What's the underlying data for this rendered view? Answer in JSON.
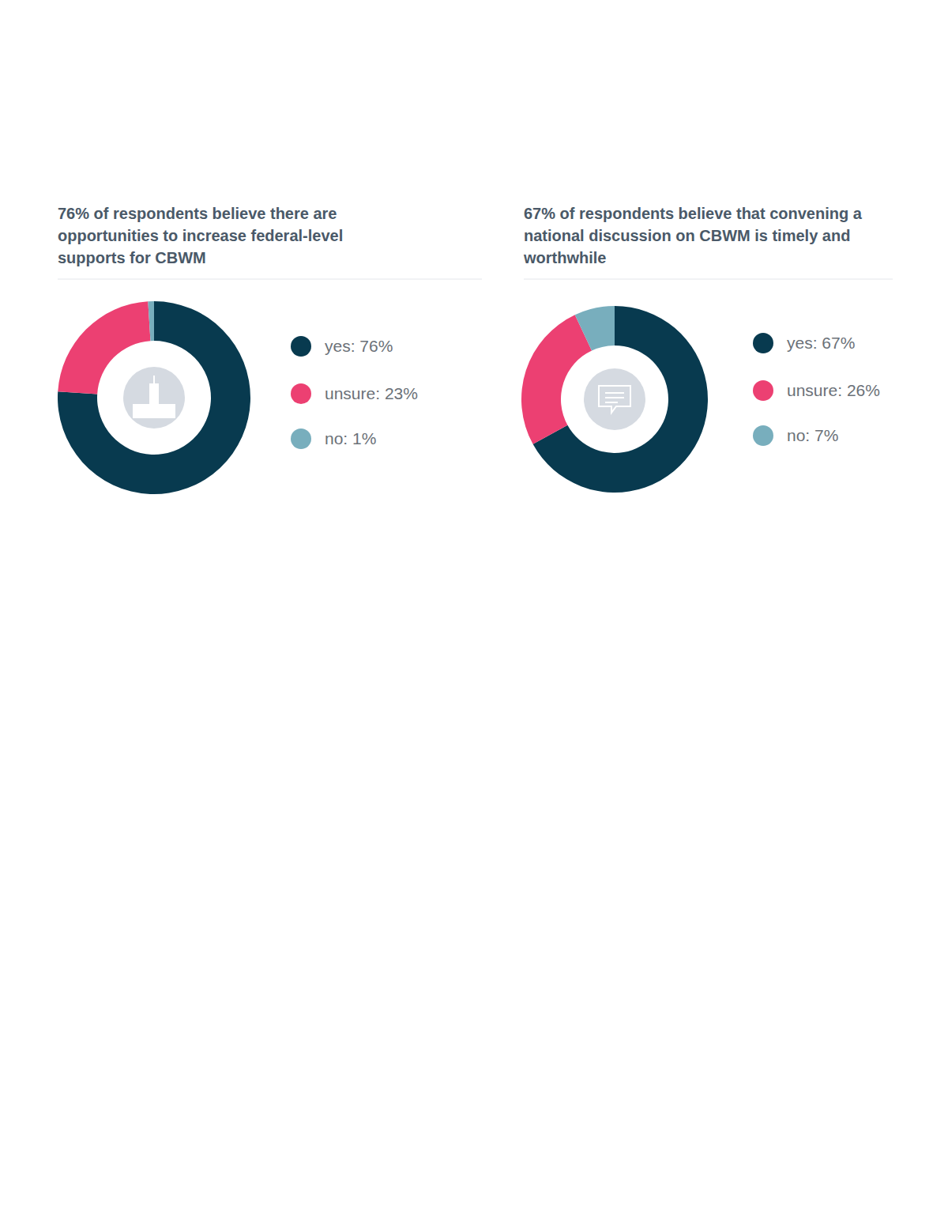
{
  "chart_data": [
    {
      "type": "pie",
      "title": "76% of respondents believe there are opportunities to increase federal-level supports for CBWM",
      "categories": [
        "yes: 76%",
        "unsure: 23%",
        "no: 1%"
      ],
      "values": [
        76,
        23,
        1
      ],
      "colors": [
        "#083a4f",
        "#ec4072",
        "#78aebd"
      ]
    },
    {
      "type": "pie",
      "title": "67% of respondents believe that convening a national discussion on CBWM is timely and worthwhile",
      "categories": [
        "yes: 67%",
        "unsure: 26%",
        "no: 7%"
      ],
      "values": [
        67,
        26,
        7
      ],
      "colors": [
        "#083a4f",
        "#ec4072",
        "#78aebd"
      ]
    }
  ]
}
